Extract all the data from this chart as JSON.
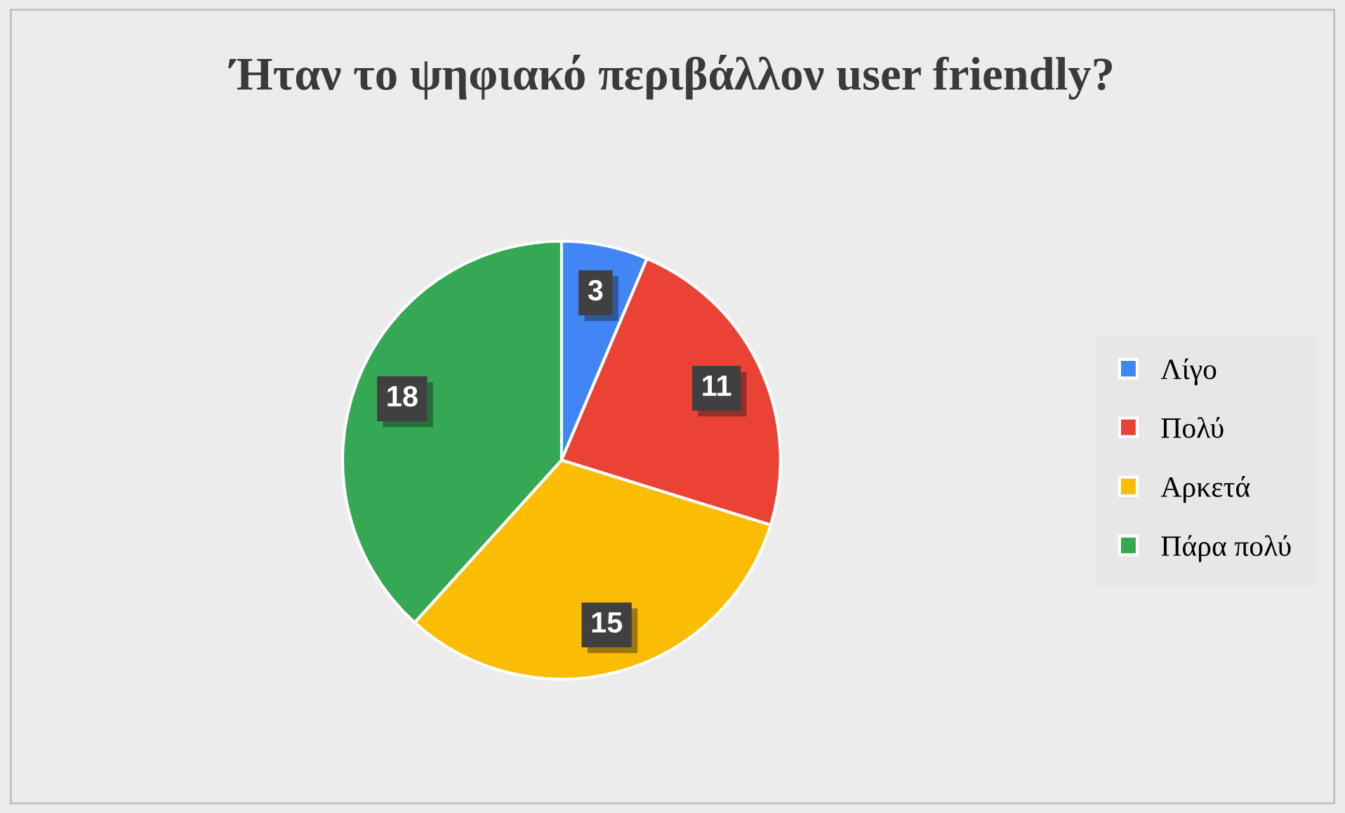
{
  "chart_data": {
    "type": "pie",
    "title": "Ήταν το ψηφιακό περιβάλλον user friendly?",
    "categories": [
      "Λίγο",
      "Πολύ",
      "Αρκετά",
      "Πάρα πολύ"
    ],
    "values": [
      3,
      11,
      15,
      18
    ],
    "colors": [
      "#4285f4",
      "#ea4335",
      "#fbbc04",
      "#34a853"
    ],
    "data_labels": true,
    "legend": "right"
  }
}
